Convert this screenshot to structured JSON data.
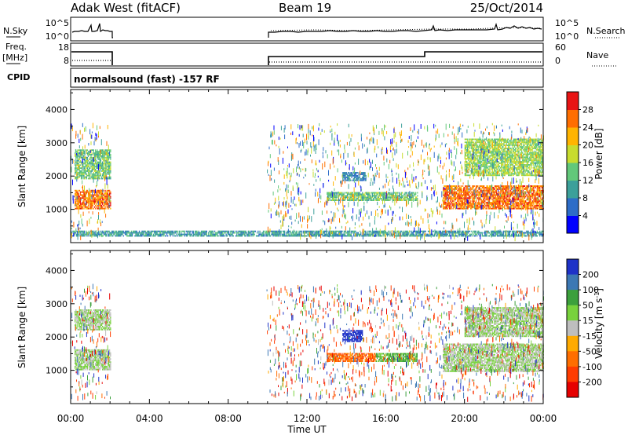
{
  "header": {
    "station": "Adak West (fitACF)",
    "beam": "Beam 19",
    "date": "25/Oct/2014"
  },
  "panels": {
    "nsky": {
      "left_label": "N.Sky",
      "right_label": "N.Search",
      "ticks": [
        "10^5",
        "10^0"
      ]
    },
    "freq": {
      "left_label_top": "Freq.",
      "left_label_bottom": "[MHz]",
      "right_label": "Nave",
      "left_ticks": [
        "18",
        "8"
      ],
      "right_ticks": [
        "60",
        "0"
      ]
    },
    "cpid": {
      "label": "CPID",
      "text": "normalsound (fast) -157 RF"
    }
  },
  "chart_data": [
    {
      "type": "heatmap",
      "title": "",
      "quantity": "Power",
      "xlabel": "Time UT",
      "ylabel": "Slant Range [km]",
      "xlim": [
        "00:00",
        "24:00"
      ],
      "ylim": [
        0,
        4600
      ],
      "x_ticks": [
        "00:00",
        "04:00",
        "08:00",
        "12:00",
        "16:00",
        "20:00",
        "00:00"
      ],
      "y_ticks": [
        1000,
        2000,
        3000,
        4000
      ],
      "colorbar": {
        "label": "Power [dB]",
        "ticks": [
          "4",
          "8",
          "12",
          "16",
          "20",
          "24",
          "28"
        ],
        "colors": [
          "#0000ff",
          "#2d6dc8",
          "#3ca09a",
          "#62c87a",
          "#c8dc2e",
          "#ffb400",
          "#ff6e00",
          "#e81414"
        ]
      },
      "data_gaps_hours": [
        [
          2.0,
          9.95
        ]
      ],
      "features": [
        {
          "hours": [
            0.2,
            2.0
          ],
          "range_km": [
            1000,
            1550
          ],
          "value_db": 26
        },
        {
          "hours": [
            0.2,
            2.0
          ],
          "range_km": [
            1900,
            2800
          ],
          "value_db": 14
        },
        {
          "hours": [
            13.0,
            17.6
          ],
          "range_km": [
            1250,
            1500
          ],
          "value_db": 14
        },
        {
          "hours": [
            13.8,
            15.0
          ],
          "range_km": [
            1850,
            2100
          ],
          "value_db": 8
        },
        {
          "hours": [
            18.9,
            24.0
          ],
          "range_km": [
            1000,
            1700
          ],
          "value_db": 26
        },
        {
          "hours": [
            20.0,
            24.0
          ],
          "range_km": [
            2000,
            3100
          ],
          "value_db": 16
        },
        {
          "hours": [
            0.0,
            24.0
          ],
          "range_km": [
            180,
            350
          ],
          "value_db": 10
        }
      ]
    },
    {
      "type": "heatmap",
      "title": "",
      "quantity": "Velocity",
      "xlabel": "Time UT",
      "ylabel": "Slant Range [km]",
      "xlim": [
        "00:00",
        "24:00"
      ],
      "ylim": [
        0,
        4600
      ],
      "x_ticks": [
        "00:00",
        "04:00",
        "08:00",
        "12:00",
        "16:00",
        "20:00",
        "00:00"
      ],
      "y_ticks": [
        1000,
        2000,
        3000,
        4000
      ],
      "colorbar": {
        "label": "Velocity [m s^-1]",
        "ticks": [
          "200",
          "100",
          "50",
          "15",
          "-15",
          "-50",
          "-100",
          "-200"
        ],
        "colors": [
          "#1e32c8",
          "#3c78b4",
          "#3ca03c",
          "#78d23c",
          "#bebebe",
          "#ffaa00",
          "#ff6e00",
          "#ff3c00",
          "#e60000"
        ]
      },
      "data_gaps_hours": [
        [
          2.0,
          9.95
        ]
      ],
      "features": [
        {
          "hours": [
            0.2,
            2.0
          ],
          "range_km": [
            1000,
            1600
          ],
          "value_ms": 0
        },
        {
          "hours": [
            0.2,
            2.0
          ],
          "range_km": [
            2200,
            2800
          ],
          "value_ms": 0
        },
        {
          "hours": [
            13.0,
            15.5
          ],
          "range_km": [
            1250,
            1500
          ],
          "value_ms": -60
        },
        {
          "hours": [
            15.5,
            17.6
          ],
          "range_km": [
            1250,
            1500
          ],
          "value_ms": 40
        },
        {
          "hours": [
            13.8,
            14.8
          ],
          "range_km": [
            1850,
            2200
          ],
          "value_ms": 200
        },
        {
          "hours": [
            18.9,
            24.0
          ],
          "range_km": [
            950,
            1800
          ],
          "value_ms": 0
        },
        {
          "hours": [
            20.0,
            24.0
          ],
          "range_km": [
            2000,
            2900
          ],
          "value_ms": 0
        }
      ]
    }
  ]
}
